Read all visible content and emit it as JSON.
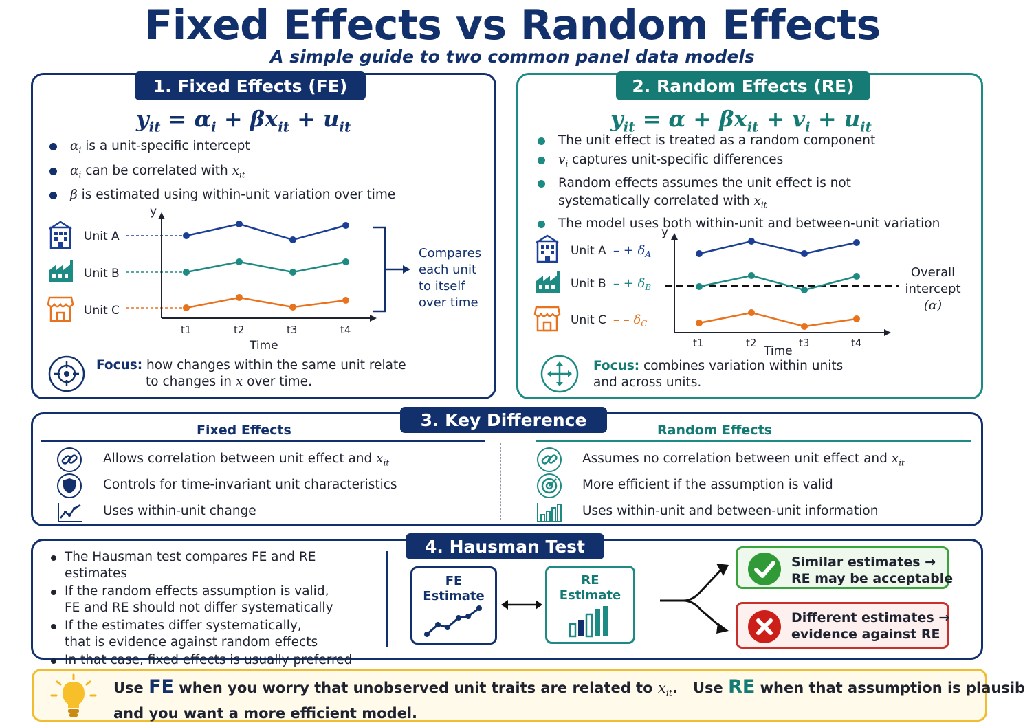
{
  "header": {
    "title": "Fixed Effects vs Random Effects",
    "subtitle": "A simple guide to two common panel data models"
  },
  "fe": {
    "tab": "1. Fixed Effects (FE)",
    "eq": {
      "y": "y",
      "y_sub": "it",
      "eq": " = ",
      "a": "α",
      "a_sub": "i",
      "plus1": " + β",
      "x": "x",
      "x_sub": "it",
      "plus2": " + u",
      "u_sub": "it"
    },
    "bullets": [
      {
        "sym": "α",
        "sub": "i",
        "text": " is a unit-specific intercept"
      },
      {
        "sym": "α",
        "sub": "i",
        "text": " can be correlated with ",
        "sym2": "x",
        "sub2": "it"
      },
      {
        "sym": "β",
        "text": " is estimated using within-unit variation over time"
      }
    ],
    "chart": {
      "y_axis": "y",
      "x_axis": "Time",
      "ticks": [
        "t1",
        "t2",
        "t3",
        "t4"
      ],
      "units": [
        {
          "label": "Unit A",
          "icon": "building-icon",
          "color": "#1b3f94"
        },
        {
          "label": "Unit B",
          "icon": "factory-icon",
          "color": "#1d8a83"
        },
        {
          "label": "Unit C",
          "icon": "store-icon",
          "color": "#e8731e"
        }
      ]
    },
    "note": [
      "Compares",
      "each unit",
      "to itself",
      "over time"
    ],
    "focus_label": "Focus:",
    "focus_line1": "how changes within the same unit relate",
    "focus_line2a": "to changes in ",
    "focus_line2_sym": "x",
    "focus_line2b": " over time."
  },
  "re": {
    "tab": "2. Random Effects (RE)",
    "eq": {
      "y": "y",
      "y_sub": "it",
      "eq": " = α + β",
      "x": "x",
      "x_sub": "it",
      "plus1": " + v",
      "v_sub": "i",
      "plus2": " + u",
      "u_sub": "it"
    },
    "bullets": [
      {
        "text": "The unit effect is treated as a random component"
      },
      {
        "sym": "v",
        "sub": "i",
        "text": " captures unit-specific differences"
      },
      {
        "text": "Random effects assumes the unit effect is not",
        "line2": "systematically correlated with ",
        "sym2": "x",
        "sub2": "it"
      },
      {
        "text": "The model uses both within-unit and between-unit variation"
      }
    ],
    "chart": {
      "y_axis": "y",
      "x_axis": "Time",
      "ticks": [
        "t1",
        "t2",
        "t3",
        "t4"
      ],
      "units": [
        {
          "label": "Unit A",
          "dash": "– + δ",
          "sub": "A",
          "icon": "building-icon",
          "color": "#1b3f94"
        },
        {
          "label": "Unit B",
          "dash": "– + δ",
          "sub": "B",
          "icon": "factory-icon",
          "color": "#1d8a83"
        },
        {
          "label": "Unit C",
          "dash": "– – δ",
          "sub": "C",
          "icon": "store-icon",
          "color": "#e8731e"
        }
      ],
      "intercept_line1": "Overall",
      "intercept_line2": "intercept",
      "intercept_sym": "(α)"
    },
    "focus_label": "Focus:",
    "focus_line1": "combines variation within units",
    "focus_line2": "and across units."
  },
  "key": {
    "tab": "3. Key Difference",
    "fe_head": "Fixed Effects",
    "re_head": "Random Effects",
    "fe_rows": [
      {
        "icon": "link-icon",
        "text": "Allows correlation between unit effect and ",
        "sym": "x",
        "sub": "it"
      },
      {
        "icon": "shield-icon",
        "text": "Controls for time-invariant unit characteristics"
      },
      {
        "icon": "line-chart-icon",
        "text": "Uses within-unit change"
      }
    ],
    "re_rows": [
      {
        "icon": "link-icon",
        "text": "Assumes no correlation between unit effect and ",
        "sym": "x",
        "sub": "it"
      },
      {
        "icon": "target-icon",
        "text": "More efficient if the assumption is valid"
      },
      {
        "icon": "bar-chart-icon",
        "text": "Uses within-unit and between-unit information"
      }
    ]
  },
  "hausman": {
    "tab": "4. Hausman Test",
    "bullets": [
      [
        "The Hausman test compares FE and RE estimates"
      ],
      [
        "If the random effects assumption is valid,",
        "FE and RE should not differ systematically"
      ],
      [
        "If the estimates differ systematically,",
        "that is evidence against random effects"
      ],
      [
        "In that case, fixed effects is usually preferred"
      ]
    ],
    "fe_box": [
      "FE",
      "Estimate"
    ],
    "re_box": [
      "RE",
      "Estimate"
    ],
    "ok": [
      "Similar estimates →",
      "RE may be acceptable"
    ],
    "bad": [
      "Different estimates →",
      "evidence against RE"
    ]
  },
  "tip": {
    "use1": "Use ",
    "fe": "FE",
    "mid": " when you worry that unobserved unit traits are related to ",
    "sym": "x",
    "sub": "it",
    "dot": ".",
    "use2": "   Use ",
    "re": "RE",
    "end": " when that assumption is plausible",
    "line2": "and you want a more efficient model."
  },
  "colors": {
    "navy": "#12306b",
    "teal": "#1d8a83",
    "orange": "#e8731e",
    "green": "#3aa43c",
    "red": "#c9302c",
    "yellow": "#efbd2f"
  }
}
